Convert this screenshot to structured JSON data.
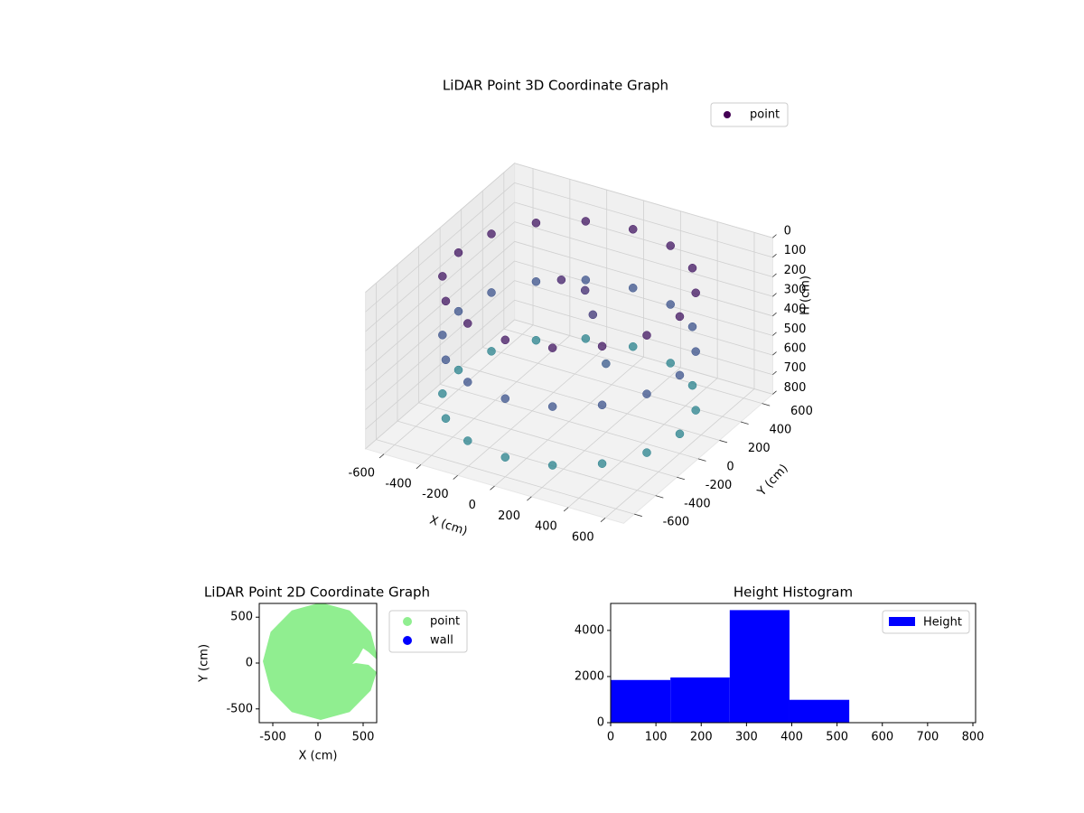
{
  "chart_data": [
    {
      "type": "scatter3d",
      "title": "LiDAR Point 3D Coordinate Graph",
      "xlabel": "X (cm)",
      "ylabel": "Y (cm)",
      "zlabel": "H (cm)",
      "xlim": [
        -700,
        700
      ],
      "ylim": [
        -700,
        700
      ],
      "zlim": [
        800,
        0
      ],
      "xticks": [
        -600,
        -400,
        -200,
        0,
        200,
        400,
        600
      ],
      "yticks": [
        -600,
        -400,
        -200,
        0,
        200,
        400,
        600
      ],
      "zticks": [
        0,
        100,
        200,
        300,
        400,
        500,
        600,
        700,
        800
      ],
      "grid": true,
      "legend": "upper right",
      "series": [
        {
          "name": "point",
          "color": "#440154",
          "cmap": [
            "#440154",
            "#3b528b",
            "#21918c"
          ],
          "x": [
            600,
            554,
            424,
            230,
            0,
            -230,
            -424,
            -554,
            -600,
            -554,
            -424,
            -230,
            0,
            230,
            424,
            554,
            600,
            554,
            424,
            230,
            0,
            -230,
            -424,
            -554,
            -600,
            -554,
            -424,
            -230,
            0,
            230,
            424,
            554,
            600,
            554,
            424,
            230,
            0,
            -230,
            -424,
            -554,
            -600,
            -554,
            -424,
            -230,
            0,
            230,
            424,
            554,
            -100,
            0,
            100,
            200
          ],
          "y": [
            0,
            230,
            424,
            554,
            600,
            554,
            424,
            230,
            0,
            -230,
            -424,
            -554,
            -600,
            -554,
            -424,
            -230,
            0,
            230,
            424,
            554,
            600,
            554,
            424,
            230,
            0,
            -230,
            -424,
            -554,
            -600,
            -554,
            -424,
            -230,
            0,
            230,
            424,
            554,
            600,
            554,
            424,
            230,
            0,
            -230,
            -424,
            -554,
            -600,
            -554,
            -424,
            -230,
            100,
            150,
            50,
            0
          ],
          "z": [
            100,
            100,
            100,
            100,
            100,
            100,
            100,
            100,
            100,
            100,
            100,
            100,
            100,
            100,
            100,
            100,
            400,
            400,
            400,
            400,
            400,
            400,
            400,
            400,
            400,
            400,
            400,
            400,
            400,
            400,
            400,
            400,
            700,
            700,
            700,
            700,
            700,
            700,
            700,
            700,
            700,
            700,
            700,
            700,
            700,
            700,
            700,
            700,
            150,
            200,
            250,
            450
          ]
        }
      ]
    },
    {
      "type": "scatter",
      "title": "LiDAR Point 2D Coordinate Graph",
      "xlabel": "X (cm)",
      "ylabel": "Y (cm)",
      "xlim": [
        -650,
        650
      ],
      "ylim": [
        -650,
        650
      ],
      "xticks": [
        -500,
        0,
        500
      ],
      "yticks": [
        -500,
        0,
        500
      ],
      "legend": "outside right",
      "series": [
        {
          "name": "point",
          "color": "#90ee90",
          "x": [
            670,
            584,
            350,
            30,
            -290,
            -524,
            -610,
            -524,
            -290,
            30,
            350,
            584,
            650,
            560,
            420,
            380,
            450,
            500,
            560,
            650
          ],
          "values": [
            20,
            340,
            574,
            660,
            574,
            340,
            20,
            -300,
            -534,
            -620,
            -534,
            -300,
            -100,
            -20,
            0,
            -10,
            70,
            160,
            120,
            40
          ]
        },
        {
          "name": "wall",
          "color": "#0000ff",
          "x": [],
          "values": []
        }
      ]
    },
    {
      "type": "histogram",
      "title": "Height Histogram",
      "bins": [
        0,
        132,
        263,
        395,
        527,
        658,
        790
      ],
      "xlim": [
        0,
        806
      ],
      "ylim": [
        0,
        5170
      ],
      "xticks": [
        0,
        100,
        200,
        300,
        400,
        500,
        600,
        700,
        800
      ],
      "yticks": [
        0,
        2000,
        4000
      ],
      "legend": "upper right",
      "series": [
        {
          "name": "Height",
          "color": "#0000ff",
          "values": [
            1850,
            1960,
            4880,
            990,
            0,
            0
          ]
        }
      ]
    }
  ]
}
